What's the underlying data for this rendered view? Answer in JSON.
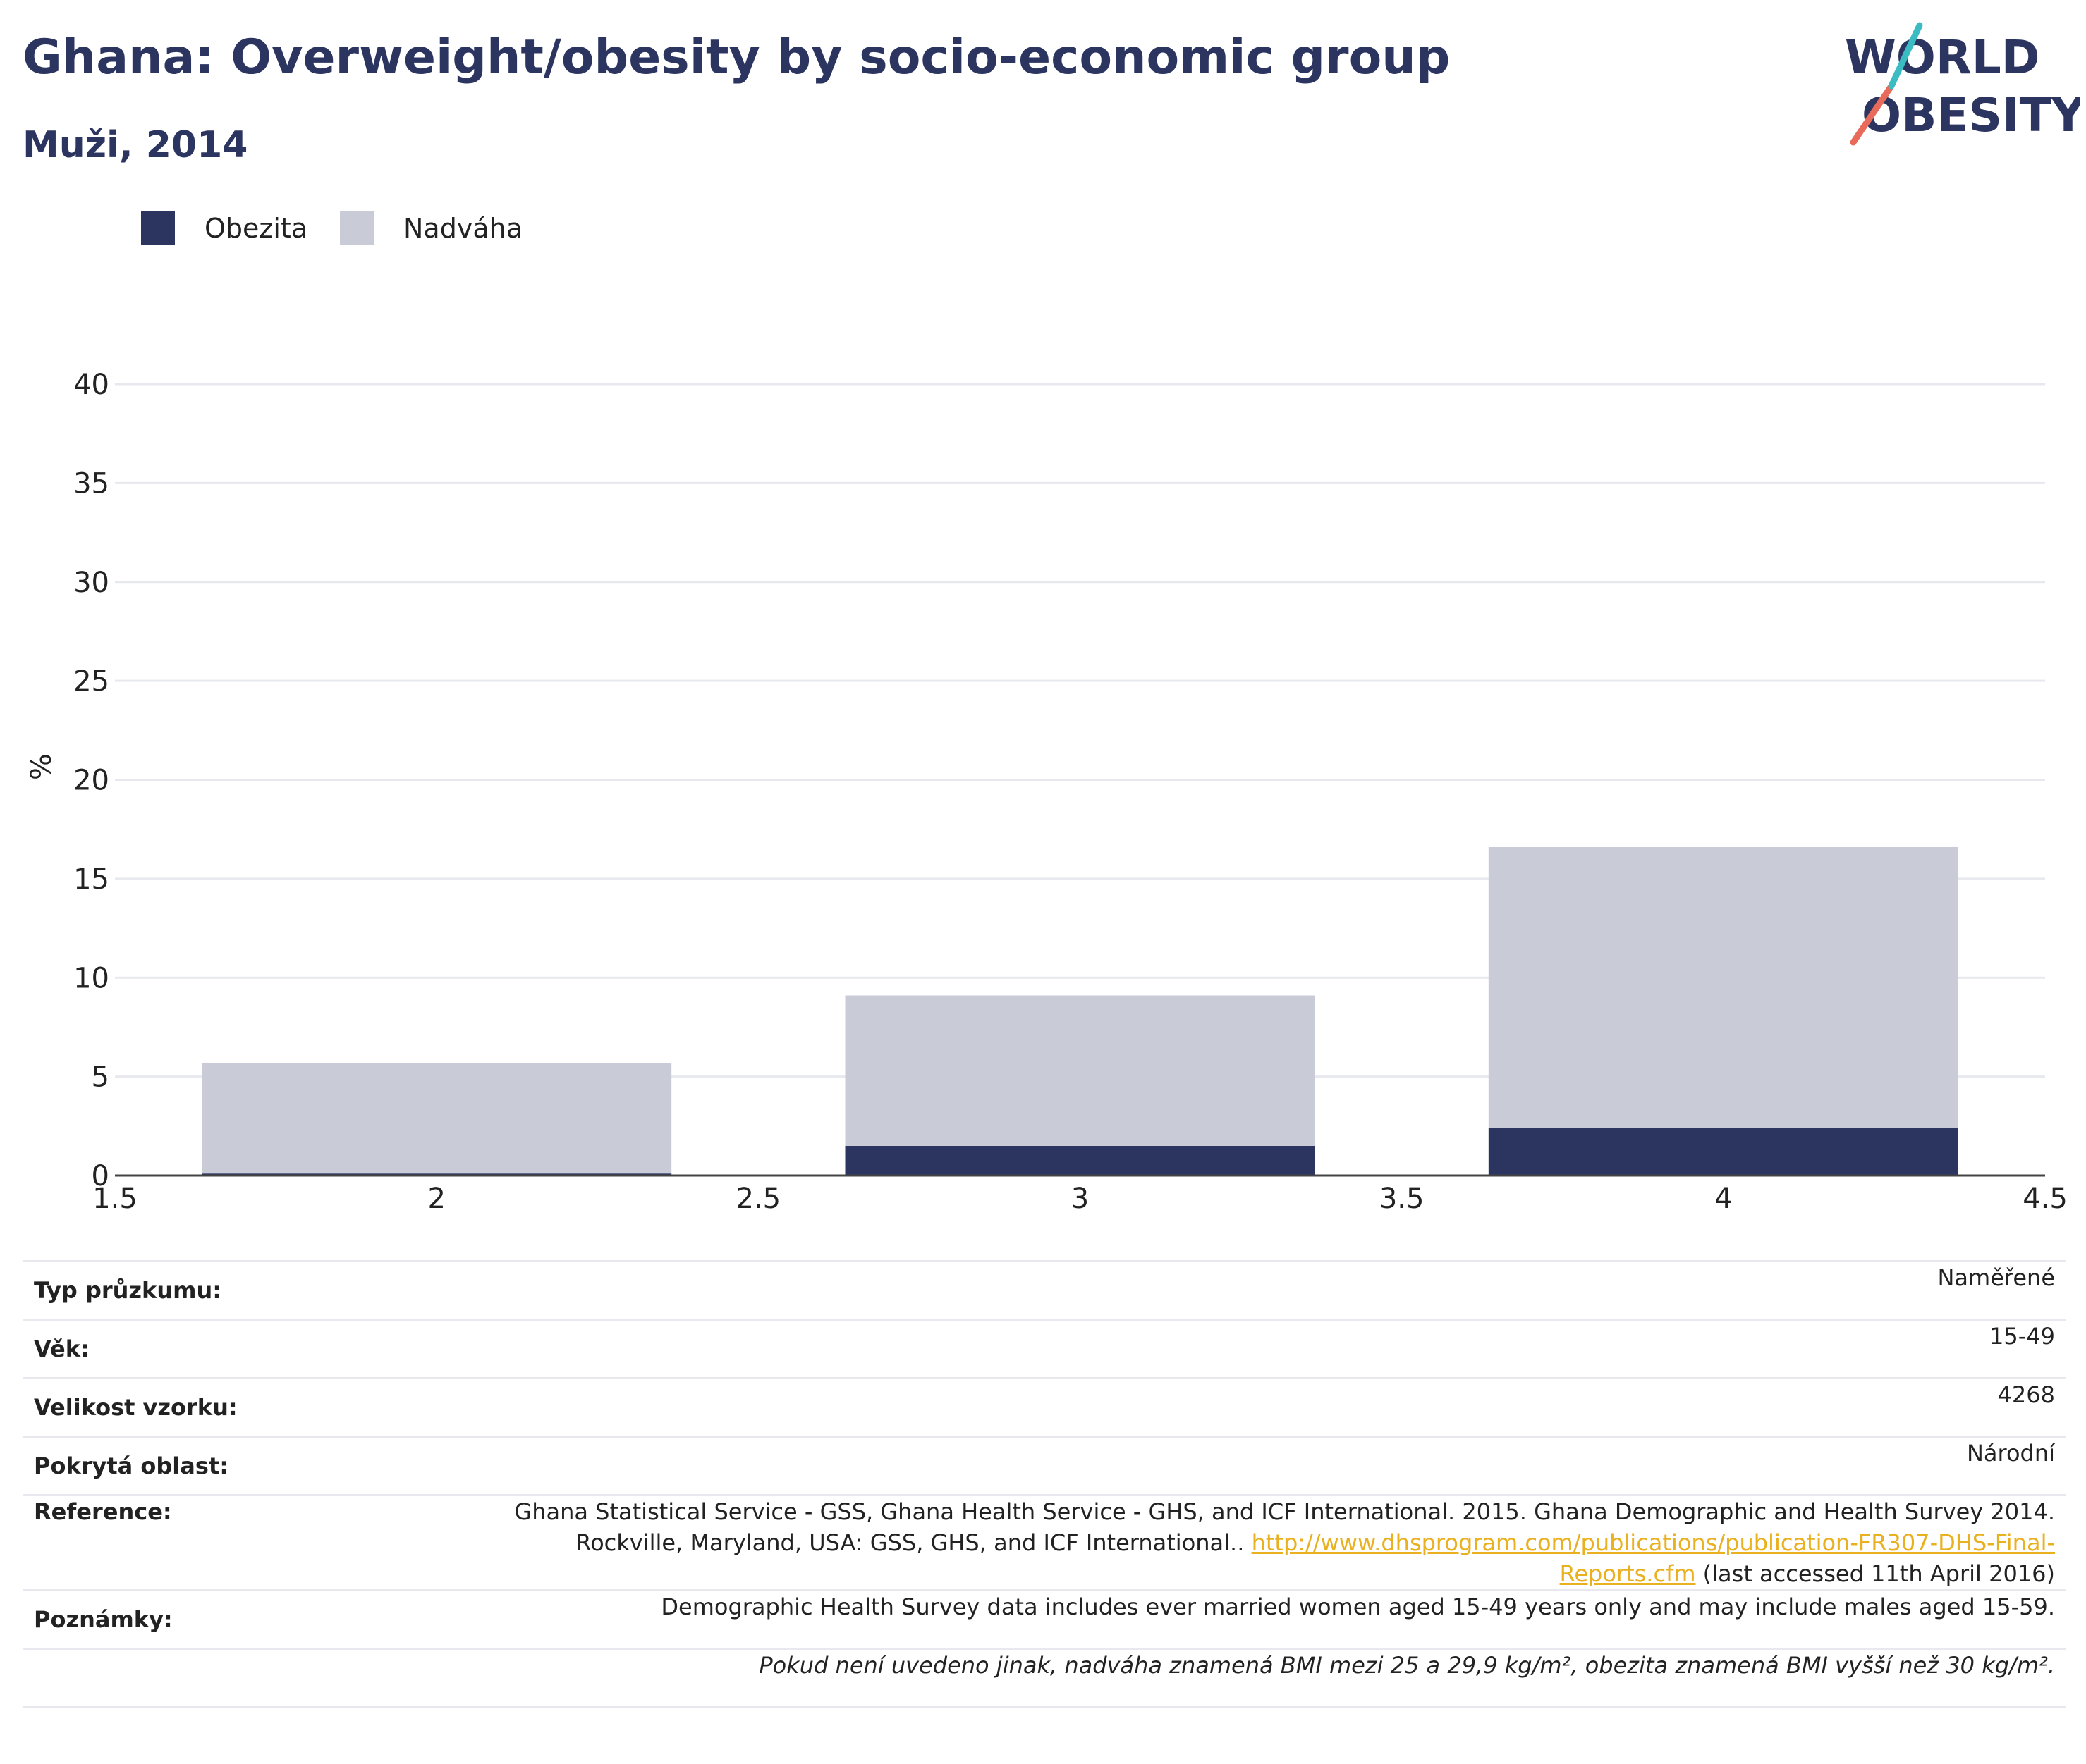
{
  "title": "Ghana: Overweight/obesity by socio-economic group",
  "subtitle": "Muži, 2014",
  "logo": {
    "line1": "WORLD",
    "line2": "OBESITY"
  },
  "colors": {
    "title": "#2b3560",
    "obesity": "#2b3560",
    "overweight": "#c9cbd6",
    "link": "#e9b020"
  },
  "legend": [
    {
      "label": "Obezita",
      "color": "#2b3560"
    },
    {
      "label": "Nadváha",
      "color": "#c9cbd6"
    }
  ],
  "chart_data": {
    "type": "bar",
    "stacked": true,
    "x": [
      2,
      3,
      4
    ],
    "xlim": [
      1.5,
      4.5
    ],
    "xticks": [
      "1.5",
      "2",
      "2.5",
      "3",
      "3.5",
      "4",
      "4.5"
    ],
    "ylabel": "%",
    "ylim": [
      0,
      40
    ],
    "yticks": [
      "0",
      "5",
      "10",
      "15",
      "20",
      "25",
      "30",
      "35",
      "40"
    ],
    "grid": true,
    "legend_position": "top-left",
    "series": [
      {
        "name": "Obezita",
        "values": [
          0.1,
          1.5,
          2.4
        ]
      },
      {
        "name": "Nadváha",
        "values": [
          5.6,
          7.6,
          14.2
        ]
      }
    ]
  },
  "info": {
    "survey_type": {
      "label": "Typ průzkumu:",
      "value": "Naměřené"
    },
    "age": {
      "label": "Věk:",
      "value": "15-49"
    },
    "sample_size": {
      "label": "Velikost vzorku:",
      "value": "4268"
    },
    "area": {
      "label": "Pokrytá oblast:",
      "value": "Národní"
    },
    "reference": {
      "label": "Reference:",
      "text": "Ghana Statistical Service - GSS, Ghana Health Service - GHS, and ICF International. 2015. Ghana Demographic and Health Survey 2014. Rockville, Maryland, USA: GSS, GHS, and ICF International..",
      "link": "http://www.dhsprogram.com/publications/publication-FR307-DHS-Final-Reports.cfm",
      "suffix": "(last accessed 11th April 2016)"
    },
    "notes": {
      "label": "Poznámky:",
      "value": "Demographic Health Survey data includes ever married women aged 15-49 years only and may include males aged 15-59."
    },
    "footnote": "Pokud není uvedeno jinak, nadváha znamená BMI mezi 25 a 29,9 kg/m², obezita znamená BMI vyšší než 30 kg/m²."
  }
}
